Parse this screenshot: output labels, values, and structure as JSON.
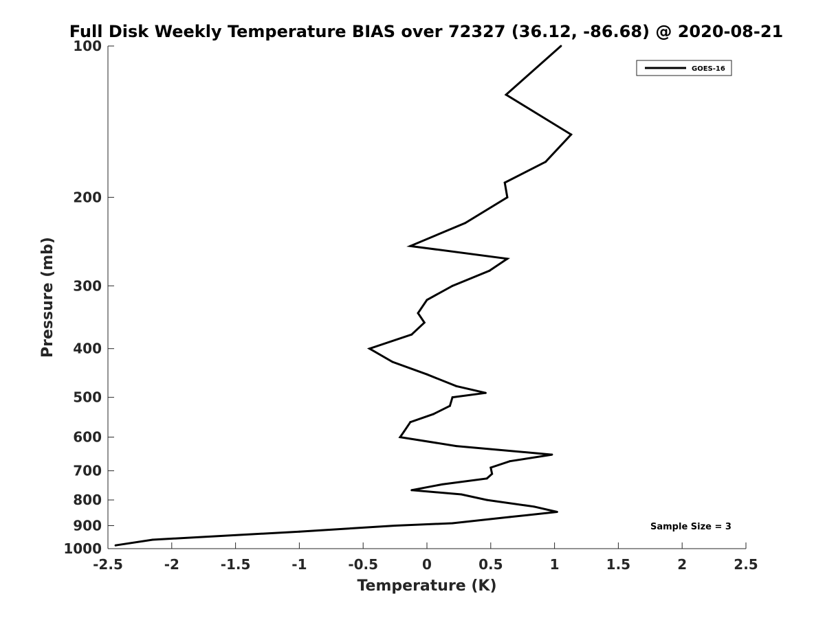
{
  "chart_data": {
    "type": "line",
    "title": "Full Disk Weekly Temperature BIAS over 72327 (36.12, -86.68) @ 2020-08-21",
    "xlabel": "Temperature (K)",
    "ylabel": "Pressure (mb)",
    "xlim": [
      -2.5,
      2.5
    ],
    "ylim": [
      100,
      1000
    ],
    "y_scale": "log",
    "y_reversed": true,
    "grid": false,
    "x_ticks": [
      "-2.5",
      "-2",
      "-1.5",
      "-1",
      "-0.5",
      "0",
      "0.5",
      "1",
      "1.5",
      "2",
      "2.5"
    ],
    "y_ticks": [
      "100",
      "200",
      "300",
      "400",
      "500",
      "600",
      "700",
      "800",
      "900",
      "1000"
    ],
    "legend": {
      "placement": "top-right",
      "entries": [
        "GOES-16"
      ]
    },
    "annotation": "Sample Size = 3",
    "series": [
      {
        "name": "GOES-16",
        "color": "#000000",
        "points": [
          {
            "x": 1.05,
            "p": 100
          },
          {
            "x": 0.62,
            "p": 125
          },
          {
            "x": 1.13,
            "p": 150
          },
          {
            "x": 0.93,
            "p": 170
          },
          {
            "x": 0.61,
            "p": 187
          },
          {
            "x": 0.63,
            "p": 200
          },
          {
            "x": 0.3,
            "p": 225
          },
          {
            "x": -0.13,
            "p": 250
          },
          {
            "x": 0.63,
            "p": 265
          },
          {
            "x": 0.49,
            "p": 280
          },
          {
            "x": 0.2,
            "p": 300
          },
          {
            "x": 0.0,
            "p": 320
          },
          {
            "x": -0.07,
            "p": 340
          },
          {
            "x": -0.02,
            "p": 355
          },
          {
            "x": -0.12,
            "p": 375
          },
          {
            "x": -0.45,
            "p": 400
          },
          {
            "x": -0.27,
            "p": 425
          },
          {
            "x": 0.0,
            "p": 450
          },
          {
            "x": 0.23,
            "p": 475
          },
          {
            "x": 0.46,
            "p": 490
          },
          {
            "x": 0.2,
            "p": 500
          },
          {
            "x": 0.18,
            "p": 520
          },
          {
            "x": 0.05,
            "p": 540
          },
          {
            "x": -0.13,
            "p": 560
          },
          {
            "x": -0.18,
            "p": 585
          },
          {
            "x": -0.21,
            "p": 600
          },
          {
            "x": 0.23,
            "p": 625
          },
          {
            "x": 0.98,
            "p": 650
          },
          {
            "x": 0.65,
            "p": 670
          },
          {
            "x": 0.5,
            "p": 690
          },
          {
            "x": 0.51,
            "p": 710
          },
          {
            "x": 0.47,
            "p": 725
          },
          {
            "x": 0.12,
            "p": 745
          },
          {
            "x": -0.12,
            "p": 765
          },
          {
            "x": 0.27,
            "p": 780
          },
          {
            "x": 0.47,
            "p": 800
          },
          {
            "x": 0.84,
            "p": 825
          },
          {
            "x": 1.02,
            "p": 845
          },
          {
            "x": 0.65,
            "p": 865
          },
          {
            "x": 0.2,
            "p": 890
          },
          {
            "x": -0.25,
            "p": 900
          },
          {
            "x": -1.0,
            "p": 925
          },
          {
            "x": -2.15,
            "p": 960
          },
          {
            "x": -2.44,
            "p": 985
          }
        ]
      }
    ]
  }
}
